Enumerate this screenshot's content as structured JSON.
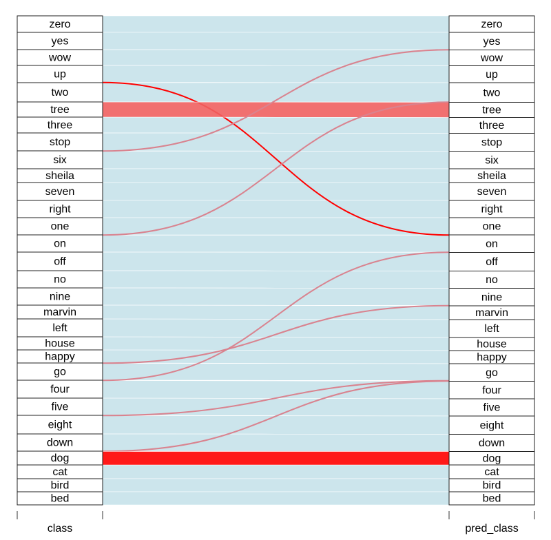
{
  "chart_data": {
    "type": "alluvial",
    "axes": [
      "class",
      "pred_class"
    ],
    "categories": [
      "zero",
      "yes",
      "wow",
      "up",
      "two",
      "tree",
      "three",
      "stop",
      "six",
      "sheila",
      "seven",
      "right",
      "one",
      "on",
      "off",
      "no",
      "nine",
      "marvin",
      "left",
      "house",
      "happy",
      "go",
      "four",
      "five",
      "eight",
      "down",
      "dog",
      "cat",
      "bird",
      "bed"
    ],
    "flows": [
      {
        "from": "zero",
        "to": "zero",
        "value": 240,
        "color": "#c6e2ea"
      },
      {
        "from": "yes",
        "to": "yes",
        "value": 250,
        "color": "#c6e2ea"
      },
      {
        "from": "wow",
        "to": "wow",
        "value": 230,
        "color": "#c6e2ea"
      },
      {
        "from": "up",
        "to": "up",
        "value": 245,
        "color": "#c6e2ea"
      },
      {
        "from": "up",
        "to": "on",
        "value": 5,
        "color": "#ff0000"
      },
      {
        "from": "two",
        "to": "two",
        "value": 280,
        "color": "#c6e2ea"
      },
      {
        "from": "tree",
        "to": "tree",
        "value": 220,
        "color": "#f06060"
      },
      {
        "from": "three",
        "to": "three",
        "value": 230,
        "color": "#c6e2ea"
      },
      {
        "from": "stop",
        "to": "stop",
        "value": 260,
        "color": "#c6e2ea"
      },
      {
        "from": "six",
        "to": "six",
        "value": 255,
        "color": "#c6e2ea"
      },
      {
        "from": "six",
        "to": "yes",
        "value": 5,
        "color": "#d9838f"
      },
      {
        "from": "sheila",
        "to": "sheila",
        "value": 200,
        "color": "#c6e2ea"
      },
      {
        "from": "seven",
        "to": "seven",
        "value": 260,
        "color": "#c6e2ea"
      },
      {
        "from": "right",
        "to": "right",
        "value": 250,
        "color": "#c6e2ea"
      },
      {
        "from": "one",
        "to": "one",
        "value": 250,
        "color": "#c6e2ea"
      },
      {
        "from": "on",
        "to": "two",
        "value": 5,
        "color": "#d9838f"
      },
      {
        "from": "on",
        "to": "on",
        "value": 245,
        "color": "#c6e2ea"
      },
      {
        "from": "off",
        "to": "off",
        "value": 270,
        "color": "#c6e2ea"
      },
      {
        "from": "no",
        "to": "no",
        "value": 250,
        "color": "#c6e2ea"
      },
      {
        "from": "nine",
        "to": "nine",
        "value": 250,
        "color": "#c6e2ea"
      },
      {
        "from": "marvin",
        "to": "marvin",
        "value": 200,
        "color": "#c6e2ea"
      },
      {
        "from": "left",
        "to": "left",
        "value": 260,
        "color": "#c6e2ea"
      },
      {
        "from": "house",
        "to": "house",
        "value": 190,
        "color": "#c6e2ea"
      },
      {
        "from": "happy",
        "to": "happy",
        "value": 190,
        "color": "#c6e2ea"
      },
      {
        "from": "go",
        "to": "nine",
        "value": 5,
        "color": "#d9838f"
      },
      {
        "from": "go",
        "to": "go",
        "value": 245,
        "color": "#c6e2ea"
      },
      {
        "from": "four",
        "to": "on",
        "value": 5,
        "color": "#d9838f"
      },
      {
        "from": "four",
        "to": "four",
        "value": 255,
        "color": "#c6e2ea"
      },
      {
        "from": "five",
        "to": "five",
        "value": 250,
        "color": "#c6e2ea"
      },
      {
        "from": "eight",
        "to": "go",
        "value": 5,
        "color": "#d9838f"
      },
      {
        "from": "eight",
        "to": "eight",
        "value": 265,
        "color": "#c6e2ea"
      },
      {
        "from": "down",
        "to": "down",
        "value": 250,
        "color": "#c6e2ea"
      },
      {
        "from": "dog",
        "to": "go",
        "value": 5,
        "color": "#d9838f"
      },
      {
        "from": "dog",
        "to": "dog",
        "value": 195,
        "color": "#ff0000"
      },
      {
        "from": "cat",
        "to": "cat",
        "value": 200,
        "color": "#c6e2ea"
      },
      {
        "from": "bird",
        "to": "bird",
        "value": 190,
        "color": "#c6e2ea"
      },
      {
        "from": "bed",
        "to": "bed",
        "value": 190,
        "color": "#c6e2ea"
      }
    ]
  }
}
